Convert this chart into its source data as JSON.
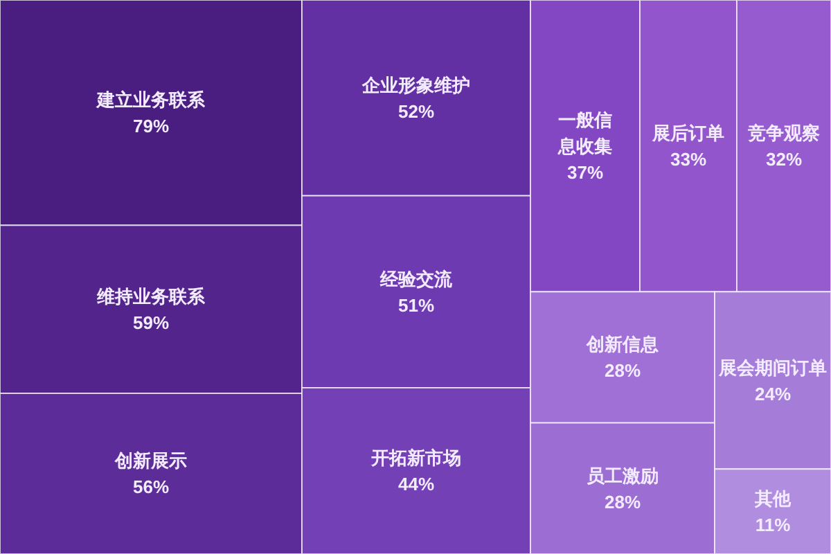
{
  "chart_data": {
    "type": "other",
    "categories": [
      "建立业务联系",
      "维持业务联系",
      "创新展示",
      "企业形象维护",
      "经验交流",
      "开拓新市场",
      "一般信息收集",
      "展后订单",
      "竞争观察",
      "创新信息",
      "员工激励",
      "展会期间订单",
      "其他"
    ],
    "values": [
      79,
      59,
      56,
      52,
      51,
      44,
      37,
      33,
      32,
      28,
      28,
      24,
      11
    ],
    "value_labels": [
      "79%",
      "59%",
      "56%",
      "52%",
      "51%",
      "44%",
      "37%",
      "33%",
      "32%",
      "28%",
      "28%",
      "24%",
      "11%"
    ],
    "colors": [
      "#4a1e80",
      "#53248c",
      "#5c2c98",
      "#6230a3",
      "#6e3ab2",
      "#7440b6",
      "#8447c4",
      "#9255cc",
      "#965ccf",
      "#a070d6",
      "#9c6dd3",
      "#a67cd9",
      "#b08ddf"
    ]
  }
}
